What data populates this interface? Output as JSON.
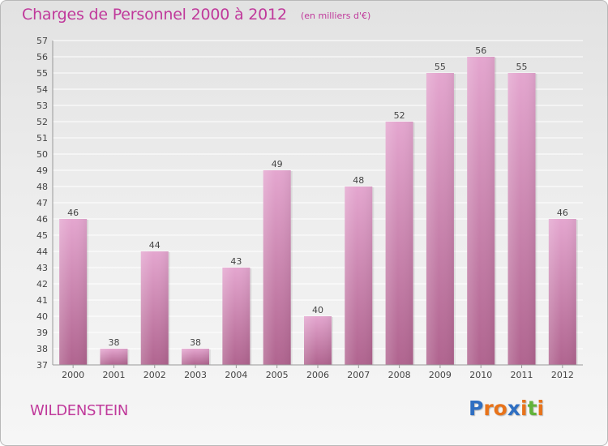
{
  "title": "Charges de Personnel 2000 à 2012",
  "subtitle": "(en milliers d'€)",
  "place": "WILDENSTEIN",
  "logo": {
    "letters": [
      "P",
      "r",
      "o",
      "x",
      "i",
      "t",
      "i"
    ],
    "colors": [
      "#2f6fc2",
      "#e8731a",
      "#e8731a",
      "#2f6fc2",
      "#e8731a",
      "#62b33a",
      "#e8731a"
    ]
  },
  "colors": {
    "bar_top": "#e4a6cf",
    "bar_bottom": "#b0648f",
    "title": "#c0399b"
  },
  "chart_data": {
    "type": "bar",
    "categories": [
      "2000",
      "2001",
      "2002",
      "2003",
      "2004",
      "2005",
      "2006",
      "2007",
      "2008",
      "2009",
      "2010",
      "2011",
      "2012"
    ],
    "values": [
      46,
      38,
      44,
      38,
      43,
      49,
      40,
      48,
      52,
      55,
      56,
      55,
      46
    ],
    "ylim": [
      37,
      57
    ],
    "yticks": [
      37,
      38,
      39,
      40,
      41,
      42,
      43,
      44,
      45,
      46,
      47,
      48,
      49,
      50,
      51,
      52,
      53,
      54,
      55,
      56,
      57
    ],
    "grid": true
  }
}
